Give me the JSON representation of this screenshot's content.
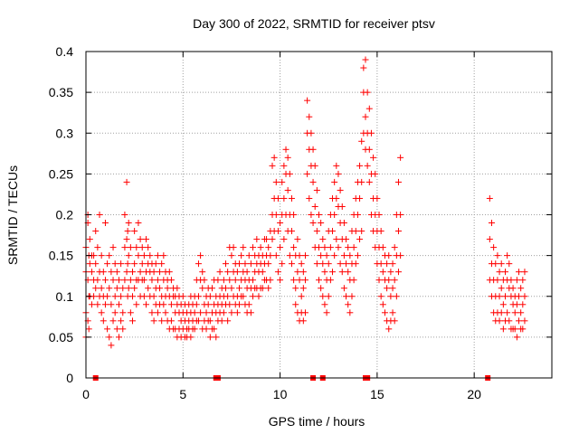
{
  "chart_data": {
    "type": "scatter",
    "title": "Day 300 of 2022, SRMTID for receiver ptsv",
    "xlabel": "GPS time / hours",
    "ylabel": "SRMTID / TECUs",
    "xlim": [
      0,
      24
    ],
    "ylim": [
      0,
      0.4
    ],
    "xticks": [
      0,
      5,
      10,
      15,
      20
    ],
    "yticks": [
      0,
      0.05,
      0.1,
      0.15,
      0.2,
      0.25,
      0.3,
      0.35,
      0.4
    ],
    "xtick_labels": [
      "0",
      "5",
      "10",
      "15",
      "20"
    ],
    "ytick_labels": [
      "0",
      "0.05",
      "0.1",
      "0.15",
      "0.2",
      "0.25",
      "0.3",
      "0.35",
      "0.4"
    ],
    "grid": true,
    "marker": "+",
    "marker_color": "#ff0000",
    "gap_marker_color": "#ff0000",
    "series": [
      {
        "name": "SRMTID",
        "x": [
          0.0,
          0.1,
          0.15,
          0.2,
          0.3,
          0.4,
          0.5,
          0.6,
          0.7,
          0.8,
          0.9,
          1.0,
          1.1,
          1.2,
          1.3,
          1.4,
          1.5,
          1.6,
          1.7,
          1.8,
          1.9,
          2.0,
          2.1,
          2.15,
          2.2,
          2.3,
          2.4,
          2.5,
          2.6,
          2.7,
          2.8,
          2.9,
          3.0,
          3.1,
          3.2,
          3.3,
          3.4,
          3.5,
          3.6,
          3.7,
          3.8,
          3.9,
          4.0,
          4.1,
          4.2,
          4.3,
          4.4,
          4.5,
          4.6,
          4.7,
          4.8,
          4.9,
          5.0,
          5.1,
          5.2,
          5.3,
          5.4,
          5.5,
          5.6,
          5.7,
          5.8,
          5.9,
          6.0,
          6.1,
          6.2,
          6.3,
          6.4,
          6.5,
          6.6,
          6.7,
          6.8,
          6.9,
          7.0,
          7.1,
          7.2,
          7.3,
          7.4,
          7.5,
          7.6,
          7.7,
          7.8,
          7.9,
          8.0,
          8.1,
          8.2,
          8.3,
          8.4,
          8.5,
          8.6,
          8.7,
          8.8,
          8.9,
          9.0,
          9.1,
          9.2,
          9.3,
          9.4,
          9.5,
          9.6,
          9.7,
          9.8,
          9.9,
          10.0,
          10.1,
          10.2,
          10.3,
          10.4,
          10.5,
          10.6,
          10.7,
          10.8,
          10.9,
          11.0,
          11.1,
          11.2,
          11.3,
          11.4,
          11.5,
          11.6,
          11.7,
          11.8,
          11.9,
          12.0,
          12.1,
          12.2,
          12.3,
          12.4,
          12.5,
          12.6,
          12.7,
          12.8,
          12.9,
          13.0,
          13.1,
          13.2,
          13.3,
          13.4,
          13.5,
          13.6,
          13.7,
          13.8,
          13.9,
          14.0,
          14.1,
          14.2,
          14.3,
          14.4,
          14.5,
          14.6,
          14.7,
          14.8,
          14.9,
          15.0,
          15.1,
          15.2,
          15.3,
          15.4,
          15.5,
          15.6,
          15.7,
          15.8,
          15.9,
          16.0,
          16.1,
          16.2,
          20.8,
          20.9,
          21.0,
          21.1,
          21.2,
          21.3,
          21.4,
          21.5,
          21.6,
          21.7,
          21.8,
          21.9,
          22.0,
          22.1,
          22.2,
          22.3,
          22.4,
          22.5,
          22.6,
          22.7,
          22.8,
          22.9
        ],
        "y_groups": [
          [
            0.13,
            0.08,
            0.05,
            0.16
          ],
          [
            0.19,
            0.12,
            0.07,
            0.2
          ],
          [
            0.1,
            0.15,
            0.06
          ],
          [
            0.14,
            0.1,
            0.17
          ],
          [
            0.13,
            0.09,
            0.15
          ],
          [
            0.12,
            0.15,
            0.1
          ],
          [
            0.14,
            0.11,
            0.18
          ],
          [
            0.12,
            0.09,
            0.16
          ],
          [
            0.13,
            0.1,
            0.2
          ],
          [
            0.11,
            0.08,
            0.15
          ],
          [
            0.1,
            0.13,
            0.07
          ],
          [
            0.12,
            0.09,
            0.19
          ],
          [
            0.1,
            0.06,
            0.14
          ],
          [
            0.11,
            0.05,
            0.15
          ],
          [
            0.09,
            0.04,
            0.13
          ],
          [
            0.12,
            0.07,
            0.16
          ],
          [
            0.1,
            0.08,
            0.14
          ],
          [
            0.11,
            0.06,
            0.13
          ],
          [
            0.09,
            0.12,
            0.05
          ],
          [
            0.1,
            0.07,
            0.14
          ],
          [
            0.08,
            0.06,
            0.11
          ],
          [
            0.16,
            0.12,
            0.2
          ],
          [
            0.24,
            0.17,
            0.13
          ],
          [
            0.18,
            0.14,
            0.1
          ],
          [
            0.15,
            0.11,
            0.19
          ],
          [
            0.12,
            0.08,
            0.16
          ],
          [
            0.13,
            0.1,
            0.07
          ],
          [
            0.14,
            0.11,
            0.18
          ],
          [
            0.12,
            0.16,
            0.09
          ],
          [
            0.15,
            0.12,
            0.19
          ],
          [
            0.13,
            0.1,
            0.17
          ],
          [
            0.14,
            0.12,
            0.16
          ],
          [
            0.12,
            0.1,
            0.15
          ],
          [
            0.13,
            0.09,
            0.17
          ],
          [
            0.14,
            0.11,
            0.16
          ],
          [
            0.13,
            0.1,
            0.15
          ],
          [
            0.12,
            0.08,
            0.14
          ],
          [
            0.1,
            0.07,
            0.13
          ],
          [
            0.11,
            0.09,
            0.14
          ],
          [
            0.12,
            0.08,
            0.15
          ],
          [
            0.11,
            0.09,
            0.13
          ],
          [
            0.1,
            0.07,
            0.14
          ],
          [
            0.12,
            0.09,
            0.15
          ],
          [
            0.1,
            0.08,
            0.13
          ],
          [
            0.11,
            0.07,
            0.12
          ],
          [
            0.1,
            0.06,
            0.13
          ],
          [
            0.09,
            0.07,
            0.12
          ],
          [
            0.1,
            0.06,
            0.11
          ],
          [
            0.08,
            0.06,
            0.1
          ],
          [
            0.09,
            0.05,
            0.11
          ],
          [
            0.08,
            0.06,
            0.1
          ],
          [
            0.07,
            0.05,
            0.09
          ],
          [
            0.08,
            0.06,
            0.1
          ],
          [
            0.07,
            0.05,
            0.09
          ],
          [
            0.06,
            0.05,
            0.08
          ],
          [
            0.07,
            0.06,
            0.09
          ],
          [
            0.08,
            0.05,
            0.1
          ],
          [
            0.07,
            0.06,
            0.09
          ],
          [
            0.08,
            0.06,
            0.1
          ],
          [
            0.09,
            0.07,
            0.12
          ],
          [
            0.1,
            0.07,
            0.14
          ],
          [
            0.12,
            0.08,
            0.15
          ],
          [
            0.11,
            0.06,
            0.13
          ],
          [
            0.09,
            0.07,
            0.12
          ],
          [
            0.08,
            0.06,
            0.1
          ],
          [
            0.09,
            0.07,
            0.11
          ],
          [
            0.07,
            0.05,
            0.1
          ],
          [
            0.08,
            0.06,
            0.11
          ],
          [
            0.09,
            0.06,
            0.12
          ],
          [
            0.08,
            0.05,
            0.1
          ],
          [
            0.09,
            0.07,
            0.12
          ],
          [
            0.1,
            0.08,
            0.13
          ],
          [
            0.09,
            0.07,
            0.11
          ],
          [
            0.1,
            0.08,
            0.12
          ],
          [
            0.11,
            0.09,
            0.14
          ],
          [
            0.1,
            0.07,
            0.13
          ],
          [
            0.12,
            0.09,
            0.16
          ],
          [
            0.11,
            0.08,
            0.15
          ],
          [
            0.13,
            0.1,
            0.16
          ],
          [
            0.12,
            0.09,
            0.14
          ],
          [
            0.1,
            0.08,
            0.13
          ],
          [
            0.11,
            0.09,
            0.14
          ],
          [
            0.12,
            0.1,
            0.15
          ],
          [
            0.13,
            0.1,
            0.16
          ],
          [
            0.12,
            0.09,
            0.14
          ],
          [
            0.11,
            0.08,
            0.13
          ],
          [
            0.12,
            0.09,
            0.15
          ],
          [
            0.11,
            0.08,
            0.14
          ],
          [
            0.12,
            0.1,
            0.16
          ],
          [
            0.13,
            0.11,
            0.15
          ],
          [
            0.14,
            0.11,
            0.17
          ],
          [
            0.13,
            0.1,
            0.15
          ],
          [
            0.14,
            0.11,
            0.16
          ],
          [
            0.13,
            0.11,
            0.15
          ],
          [
            0.14,
            0.12,
            0.17
          ],
          [
            0.15,
            0.12,
            0.17
          ],
          [
            0.14,
            0.11,
            0.16
          ],
          [
            0.15,
            0.12,
            0.18
          ],
          [
            0.2,
            0.26,
            0.17
          ],
          [
            0.22,
            0.27,
            0.18
          ],
          [
            0.2,
            0.15,
            0.24
          ],
          [
            0.18,
            0.13,
            0.22
          ],
          [
            0.16,
            0.12,
            0.19
          ],
          [
            0.2,
            0.24,
            0.14
          ],
          [
            0.22,
            0.26,
            0.17
          ],
          [
            0.25,
            0.2,
            0.28
          ],
          [
            0.23,
            0.18,
            0.27
          ],
          [
            0.2,
            0.15,
            0.25
          ],
          [
            0.18,
            0.14,
            0.22
          ],
          [
            0.16,
            0.12,
            0.2
          ],
          [
            0.15,
            0.11,
            0.09
          ],
          [
            0.13,
            0.08,
            0.17
          ],
          [
            0.12,
            0.07,
            0.15
          ],
          [
            0.1,
            0.08,
            0.14
          ],
          [
            0.11,
            0.07,
            0.13
          ],
          [
            0.12,
            0.08,
            0.15
          ],
          [
            0.25,
            0.3,
            0.34
          ],
          [
            0.28,
            0.22,
            0.32
          ],
          [
            0.26,
            0.2,
            0.3
          ],
          [
            0.24,
            0.19,
            0.28
          ],
          [
            0.21,
            0.16,
            0.26
          ],
          [
            0.18,
            0.14,
            0.23
          ],
          [
            0.16,
            0.12,
            0.2
          ],
          [
            0.15,
            0.11,
            0.19
          ],
          [
            0.14,
            0.1,
            0.17
          ],
          [
            0.13,
            0.09,
            0.16
          ],
          [
            0.12,
            0.08,
            0.15
          ],
          [
            0.14,
            0.1,
            0.18
          ],
          [
            0.16,
            0.12,
            0.2
          ],
          [
            0.18,
            0.13,
            0.22
          ],
          [
            0.2,
            0.15,
            0.24
          ],
          [
            0.22,
            0.17,
            0.26
          ],
          [
            0.21,
            0.16,
            0.25
          ],
          [
            0.19,
            0.14,
            0.23
          ],
          [
            0.17,
            0.13,
            0.21
          ],
          [
            0.15,
            0.11,
            0.19
          ],
          [
            0.14,
            0.1,
            0.17
          ],
          [
            0.13,
            0.09,
            0.16
          ],
          [
            0.12,
            0.08,
            0.15
          ],
          [
            0.14,
            0.1,
            0.18
          ],
          [
            0.16,
            0.12,
            0.2
          ],
          [
            0.18,
            0.14,
            0.22
          ],
          [
            0.2,
            0.15,
            0.24
          ],
          [
            0.22,
            0.17,
            0.26
          ],
          [
            0.24,
            0.18,
            0.29
          ],
          [
            0.3,
            0.35,
            0.38
          ],
          [
            0.32,
            0.28,
            0.39
          ],
          [
            0.3,
            0.26,
            0.35
          ],
          [
            0.28,
            0.24,
            0.33
          ],
          [
            0.25,
            0.2,
            0.3
          ],
          [
            0.22,
            0.18,
            0.27
          ],
          [
            0.2,
            0.16,
            0.25
          ],
          [
            0.18,
            0.14,
            0.22
          ],
          [
            0.16,
            0.12,
            0.2
          ],
          [
            0.14,
            0.1,
            0.18
          ],
          [
            0.13,
            0.09,
            0.16
          ],
          [
            0.12,
            0.08,
            0.15
          ],
          [
            0.11,
            0.07,
            0.14
          ],
          [
            0.12,
            0.06,
            0.15
          ],
          [
            0.1,
            0.07,
            0.13
          ],
          [
            0.11,
            0.08,
            0.14
          ],
          [
            0.12,
            0.07,
            0.16
          ],
          [
            0.15,
            0.1,
            0.2
          ],
          [
            0.18,
            0.13,
            0.24
          ],
          [
            0.2,
            0.15,
            0.27
          ],
          [
            0.17,
            0.12,
            0.22
          ],
          [
            0.14,
            0.1,
            0.19
          ],
          [
            0.12,
            0.08,
            0.16
          ],
          [
            0.1,
            0.07,
            0.14
          ],
          [
            0.12,
            0.08,
            0.15
          ],
          [
            0.1,
            0.07,
            0.13
          ],
          [
            0.11,
            0.08,
            0.14
          ],
          [
            0.09,
            0.06,
            0.12
          ],
          [
            0.1,
            0.07,
            0.13
          ],
          [
            0.12,
            0.08,
            0.15
          ],
          [
            0.11,
            0.07,
            0.14
          ],
          [
            0.1,
            0.06,
            0.12
          ],
          [
            0.09,
            0.06,
            0.11
          ],
          [
            0.08,
            0.06,
            0.1
          ],
          [
            0.09,
            0.05,
            0.12
          ],
          [
            0.1,
            0.07,
            0.13
          ],
          [
            0.08,
            0.06,
            0.11
          ],
          [
            0.09,
            0.06,
            0.12
          ],
          [
            0.1,
            0.07,
            0.13
          ]
        ]
      }
    ],
    "gap_markers_x": [
      0.5,
      6.7,
      6.8,
      11.7,
      12.2,
      14.4,
      14.5,
      20.7
    ]
  }
}
